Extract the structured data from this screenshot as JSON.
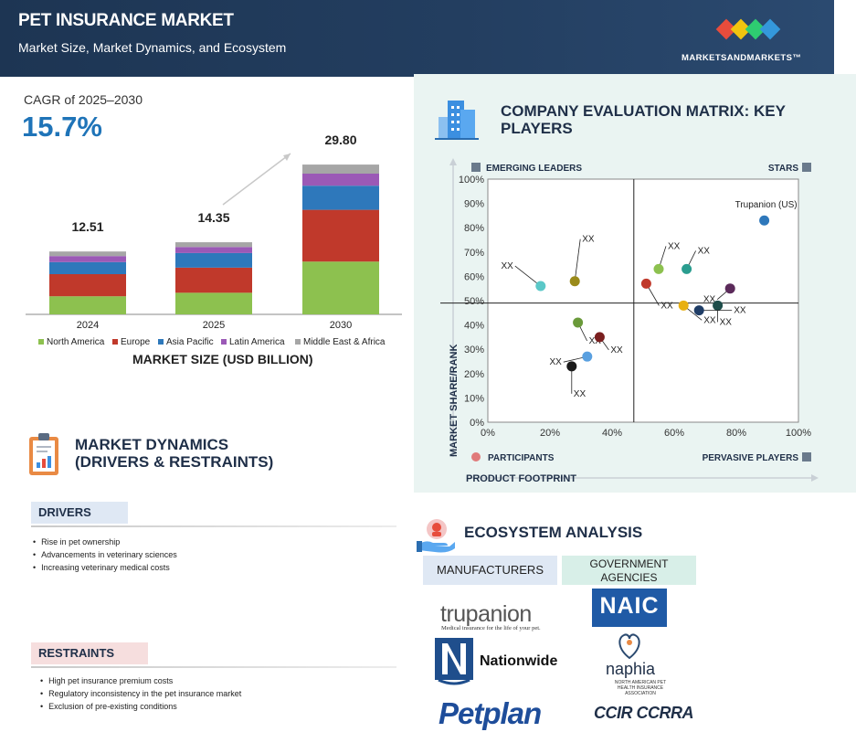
{
  "header": {
    "title": "PET INSURANCE MARKET",
    "subtitle": "Market Size, Market Dynamics, and Ecosystem",
    "brand": "MARKETSANDMARKETS™"
  },
  "cagr": {
    "label": "CAGR of 2025–2030",
    "value": "15.7%"
  },
  "colors": {
    "north_america": "#8dc14f",
    "europe": "#c0392b",
    "asia_pacific": "#2e78bb",
    "latin_america": "#9b59b6",
    "middle_east_africa": "#a6a6a6",
    "header_bg": "#1d3553",
    "accent_blue": "#1f74b8"
  },
  "chart_data": [
    {
      "type": "bar",
      "stacked": true,
      "categories": [
        "2024",
        "2025",
        "2030"
      ],
      "totals": [
        12.51,
        14.35,
        29.8
      ],
      "series": [
        {
          "name": "North America",
          "values": [
            3.6,
            4.3,
            10.5
          ]
        },
        {
          "name": "Europe",
          "values": [
            4.4,
            5.0,
            10.3
          ]
        },
        {
          "name": "Asia Pacific",
          "values": [
            2.4,
            2.9,
            4.8
          ]
        },
        {
          "name": "Latin America",
          "values": [
            1.2,
            1.2,
            2.4
          ]
        },
        {
          "name": "Middle East & Africa",
          "values": [
            0.91,
            0.95,
            1.8
          ]
        }
      ],
      "xlabel": "MARKET SIZE (USD BILLION)",
      "ylim": [
        0,
        30
      ]
    },
    {
      "type": "scatter",
      "title": "COMPANY EVALUATION MATRIX: KEY PLAYERS",
      "xlabel": "PRODUCT FOOTPRINT",
      "ylabel": "MARKET SHARE/RANK",
      "xlim": [
        0,
        100
      ],
      "ylim": [
        0,
        100
      ],
      "x_ticks": [
        "0%",
        "20%",
        "40%",
        "60%",
        "80%",
        "100%"
      ],
      "y_ticks": [
        "0%",
        "10%",
        "20%",
        "30%",
        "40%",
        "50%",
        "60%",
        "70%",
        "80%",
        "90%",
        "100%"
      ],
      "quadrants": [
        "EMERGING LEADERS",
        "STARS",
        "PARTICIPANTS",
        "PERVASIVE PLAYERS"
      ],
      "divider": {
        "x": 47,
        "y": 49
      },
      "points": [
        {
          "x": 89,
          "y": 83,
          "color": "#2e78bb",
          "label": "Trupanion (US)"
        },
        {
          "x": 17,
          "y": 56,
          "color": "#5bc8c8",
          "label": "XX"
        },
        {
          "x": 28,
          "y": 58,
          "color": "#9a8a1a",
          "label": "XX"
        },
        {
          "x": 55,
          "y": 63,
          "color": "#8dc14f",
          "label": "XX"
        },
        {
          "x": 64,
          "y": 63,
          "color": "#2a9d8f",
          "label": "XX"
        },
        {
          "x": 51,
          "y": 57,
          "color": "#c0392b",
          "label": "XX"
        },
        {
          "x": 78,
          "y": 55,
          "color": "#5b2a5a",
          "label": "XX"
        },
        {
          "x": 63,
          "y": 48,
          "color": "#e8b012",
          "label": "XX"
        },
        {
          "x": 74,
          "y": 48,
          "color": "#1e4d4a",
          "label": "XX"
        },
        {
          "x": 68,
          "y": 46,
          "color": "#1f3d66",
          "label": "XX"
        },
        {
          "x": 29,
          "y": 41,
          "color": "#6a9a3a",
          "label": "XX"
        },
        {
          "x": 36,
          "y": 35,
          "color": "#7a1f1f",
          "label": "XX"
        },
        {
          "x": 32,
          "y": 27,
          "color": "#5aa0e0",
          "label": "XX"
        },
        {
          "x": 27,
          "y": 23,
          "color": "#1a1a1a",
          "label": "XX"
        }
      ]
    }
  ],
  "dynamics": {
    "title_line1": "MARKET DYNAMICS",
    "title_line2": "(DRIVERS & RESTRAINTS)",
    "drivers_label": "DRIVERS",
    "drivers": [
      "Rise in pet ownership",
      "Advancements in veterinary sciences",
      "Increasing veterinary medical costs"
    ],
    "restraints_label": "RESTRAINTS",
    "restraints": [
      "High pet insurance premium costs",
      "Regulatory inconsistency in the pet insurance market",
      "Exclusion of pre-existing conditions"
    ]
  },
  "ecosystem": {
    "title": "ECOSYSTEM ANALYSIS",
    "manufacturers_label": "MANUFACTURERS",
    "government_label_1": "GOVERNMENT",
    "government_label_2": "AGENCIES",
    "logos": {
      "trupanion": "trupanion",
      "trupanion_tag": "Medical insurance for the life of your pet.",
      "nationwide": "Nationwide",
      "petplan": "Petplan",
      "naic": "NAIC",
      "naphia": "naphia",
      "naphia_sub": "NORTH AMERICAN PET HEALTH INSURANCE ASSOCIATION",
      "ccir": "CCIR CCRRA"
    }
  }
}
